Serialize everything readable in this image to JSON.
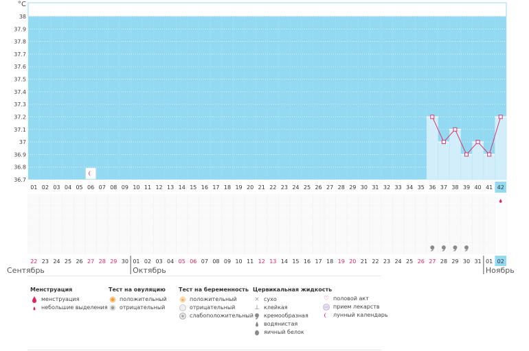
{
  "chart_data": {
    "type": "line",
    "unit": "°C",
    "ylim": [
      36.7,
      38
    ],
    "y_ticks": [
      "36.7",
      "36.8",
      "36.9",
      "37",
      "37.1",
      "37.2",
      "37.3",
      "37.4",
      "37.5",
      "37.6",
      "37.7",
      "37.8",
      "37.9",
      "38"
    ],
    "cycle_days": [
      "01",
      "02",
      "03",
      "04",
      "05",
      "06",
      "07",
      "08",
      "09",
      "10",
      "11",
      "12",
      "13",
      "14",
      "15",
      "16",
      "17",
      "18",
      "19",
      "20",
      "21",
      "22",
      "23",
      "24",
      "25",
      "26",
      "27",
      "28",
      "29",
      "30",
      "31",
      "32",
      "33",
      "34",
      "35",
      "36",
      "37",
      "38",
      "39",
      "40",
      "41",
      "42"
    ],
    "current_day_index": 41,
    "series": [
      {
        "values": [
          null,
          null,
          null,
          null,
          null,
          null,
          null,
          null,
          null,
          null,
          null,
          null,
          null,
          null,
          null,
          null,
          null,
          null,
          null,
          null,
          null,
          null,
          null,
          null,
          null,
          null,
          null,
          null,
          null,
          null,
          null,
          null,
          null,
          null,
          null,
          37.2,
          37.0,
          37.1,
          36.9,
          37.0,
          36.9,
          37.2
        ]
      }
    ],
    "calendar_dates": [
      "22",
      "23",
      "24",
      "25",
      "26",
      "27",
      "28",
      "29",
      "30",
      "01",
      "02",
      "03",
      "04",
      "05",
      "06",
      "07",
      "08",
      "09",
      "10",
      "11",
      "12",
      "13",
      "14",
      "15",
      "16",
      "17",
      "18",
      "19",
      "20",
      "21",
      "22",
      "23",
      "24",
      "25",
      "26",
      "27",
      "28",
      "29",
      "30",
      "31",
      "01",
      "02"
    ],
    "red_date_indices": [
      0,
      5,
      6,
      7,
      13,
      14,
      20,
      21,
      27,
      28,
      34,
      35
    ],
    "months": [
      {
        "label": "Сентябрь",
        "start_index": 0
      },
      {
        "label": "Октябрь",
        "start_index": 9
      },
      {
        "label": "Ноябрь",
        "start_index": 40
      }
    ],
    "moon_day_index": 5,
    "mucus_day_indices": [
      35,
      36,
      37,
      38
    ],
    "spotting_day_index": 41
  },
  "colors": {
    "fill": "#93d9f2",
    "light_fill": "#d2eefa",
    "line": "#d8336a",
    "accent": "#e0245e"
  },
  "legend": {
    "menstruation": {
      "title": "Менструация",
      "items": [
        {
          "icon": "drop-icon",
          "label": "менструация"
        },
        {
          "icon": "small-drop-icon",
          "label": "небольшие выделения"
        }
      ]
    },
    "ovulation": {
      "title": "Тест на овуляцию",
      "items": [
        {
          "icon": "ovulation-positive-icon",
          "label": "положительный"
        },
        {
          "icon": "ovulation-negative-icon",
          "label": "отрицательный"
        }
      ]
    },
    "pregnancy": {
      "title": "Тест на беременность",
      "items": [
        {
          "icon": "pregnancy-positive-icon",
          "label": "положительный"
        },
        {
          "icon": "pregnancy-negative-icon",
          "label": "отрицательный"
        },
        {
          "icon": "pregnancy-weak-icon",
          "label": "слабоположительный"
        }
      ]
    },
    "mucus": {
      "title": "Цервикальная жидкость",
      "items": [
        {
          "icon": "dry-icon",
          "label": "сухо"
        },
        {
          "icon": "sticky-icon",
          "label": "клейкая"
        },
        {
          "icon": "creamy-icon",
          "label": "кремообразная"
        },
        {
          "icon": "watery-icon",
          "label": "водянистая"
        },
        {
          "icon": "egg-white-icon",
          "label": "яичный белок"
        }
      ]
    },
    "other": {
      "items": [
        {
          "icon": "heart-icon",
          "label": "половой акт"
        },
        {
          "icon": "pill-icon",
          "label": "прием лекарств"
        },
        {
          "icon": "moon-icon",
          "label": "лунный календарь"
        }
      ]
    }
  }
}
